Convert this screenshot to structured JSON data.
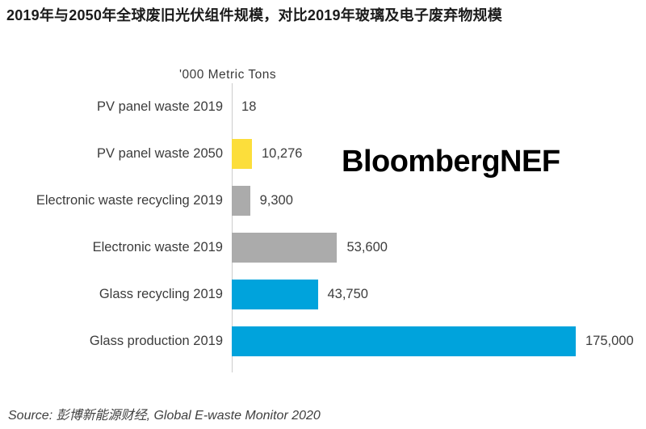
{
  "title": "2019年与2050年全球废旧光伏组件规模，对比2019年玻璃及电子废弃物规模",
  "watermark": "BloombergNEF",
  "source": "Source: 彭博新能源财经, Global E-waste Monitor 2020",
  "chart_data": {
    "type": "bar",
    "orientation": "horizontal",
    "axis_title": "'000 Metric Tons",
    "unit": "'000 metric tons",
    "categories": [
      "PV panel waste 2019",
      "PV panel waste 2050",
      "Electronic waste recycling 2019",
      "Electronic waste 2019",
      "Glass recycling 2019",
      "Glass production 2019"
    ],
    "values": [
      18,
      10276,
      9300,
      53600,
      43750,
      175000
    ],
    "value_labels": [
      "18",
      "10,276",
      "9,300",
      "53,600",
      "43,750",
      "175,000"
    ],
    "bar_colors": [
      "#FCDE3B",
      "#FCDE3B",
      "#ABABAB",
      "#ABABAB",
      "#00A3DC",
      "#00A3DC"
    ],
    "xlim": [
      0,
      175000
    ],
    "grid": false,
    "legend": "none",
    "value_labels_position": "right-of-bar"
  },
  "colors": {
    "blue": "#00A3DC",
    "yellow": "#FCDE3B",
    "gray": "#ABABAB",
    "axis_line": "#CCCCCC",
    "text": "#3C3C3C"
  }
}
